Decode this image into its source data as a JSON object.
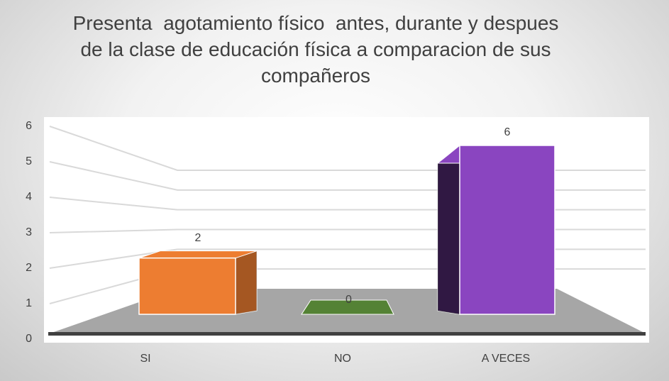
{
  "chart_data": {
    "type": "bar",
    "title": "Presenta  agotamiento físico  antes, durante y despues de la clase de educación física a comparacion de sus compañeros",
    "categories": [
      "SI",
      "NO",
      "A VECES"
    ],
    "values": [
      2,
      0,
      6
    ],
    "colors": [
      "#ed7d31",
      "#548235",
      "#8a45c0"
    ],
    "ylim": [
      0,
      6
    ],
    "yticks": [
      0,
      1,
      2,
      3,
      4,
      5,
      6
    ],
    "grid": true
  }
}
